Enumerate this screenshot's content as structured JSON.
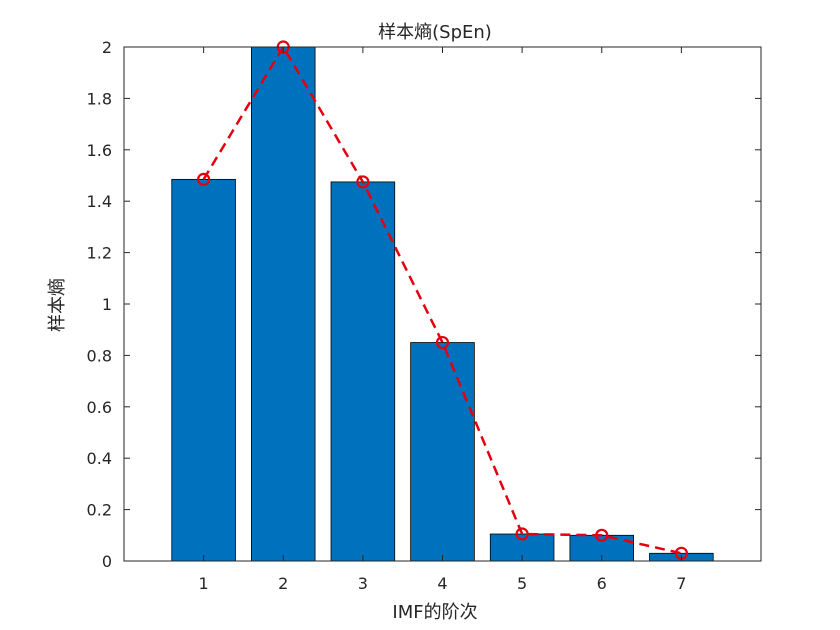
{
  "chart_data": {
    "type": "bar",
    "title": "样本熵(SpEn)",
    "xlabel": "IMF的阶次",
    "ylabel": "样本熵",
    "categories": [
      "1",
      "2",
      "3",
      "4",
      "5",
      "6",
      "7"
    ],
    "values": [
      1.485,
      2.0,
      1.475,
      0.85,
      0.105,
      0.1,
      0.03
    ],
    "overlay_line": {
      "style": "dashed",
      "marker": "circle",
      "values": [
        1.485,
        2.0,
        1.475,
        0.85,
        0.105,
        0.1,
        0.03
      ]
    },
    "xlim": [
      0,
      8
    ],
    "ylim": [
      0,
      2
    ],
    "yticks": [
      "0",
      "0.2",
      "0.4",
      "0.6",
      "0.8",
      "1",
      "1.2",
      "1.4",
      "1.6",
      "1.8",
      "2"
    ],
    "grid": false,
    "colors": {
      "bar": "#0072BD",
      "line": "#E3000F"
    }
  }
}
